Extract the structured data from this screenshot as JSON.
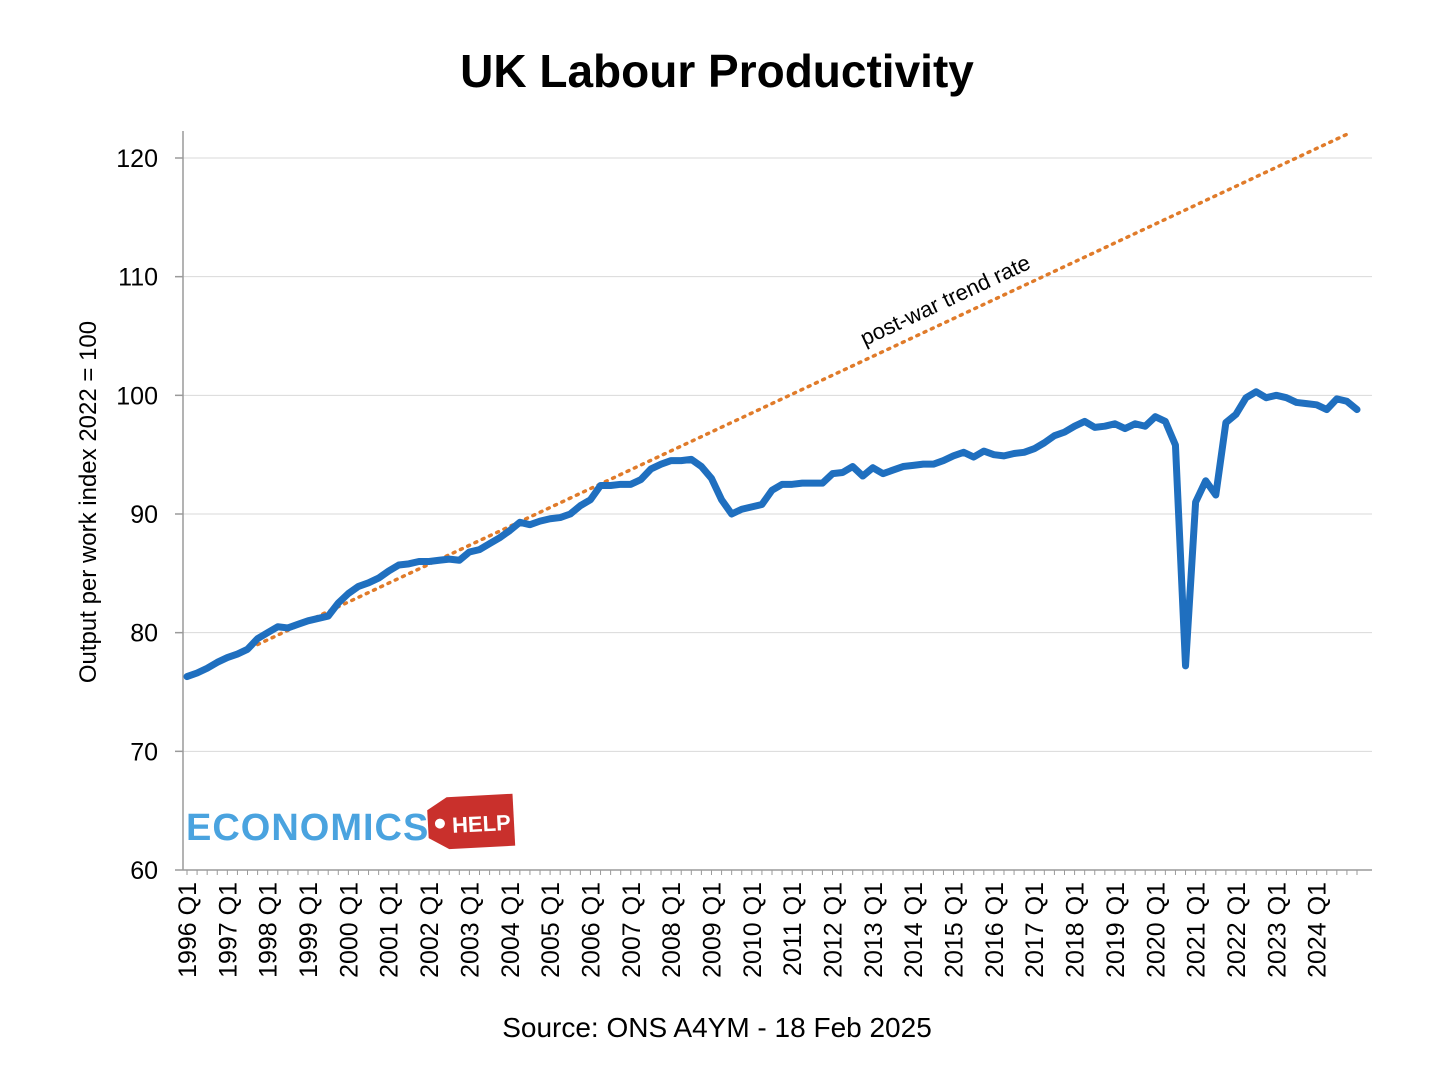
{
  "chart_data": {
    "type": "line",
    "title": "UK Labour Productivity",
    "xlabel": "",
    "ylabel": "Output per work index 2022 = 100",
    "ylim": [
      60,
      120
    ],
    "yticks": [
      60,
      70,
      80,
      90,
      100,
      110,
      120
    ],
    "grid": true,
    "x_tick_labels": [
      "1996 Q1",
      "1997 Q1",
      "1998 Q1",
      "1999 Q1",
      "2000 Q1",
      "2001 Q1",
      "2002 Q1",
      "2003 Q1",
      "2004 Q1",
      "2005 Q1",
      "2006 Q1",
      "2007 Q1",
      "2008 Q1",
      "2009 Q1",
      "2010 Q1",
      "2011 Q1",
      "2012 Q1",
      "2013 Q1",
      "2014 Q1",
      "2015 Q1",
      "2016 Q1",
      "2017 Q1",
      "2018 Q1",
      "2019 Q1",
      "2020 Q1",
      "2021 Q1",
      "2022 Q1",
      "2023 Q1",
      "2024 Q1"
    ],
    "x_start": "1996 Q1",
    "x_end": "2024 Q4",
    "series": [
      {
        "name": "",
        "color": "#1f6fbf",
        "values": [
          76.3,
          76.6,
          77.0,
          77.5,
          77.9,
          78.2,
          78.6,
          79.5,
          80.0,
          80.5,
          80.4,
          80.7,
          81.0,
          81.2,
          81.4,
          82.5,
          83.3,
          83.9,
          84.2,
          84.6,
          85.2,
          85.7,
          85.8,
          86.0,
          86.0,
          86.1,
          86.2,
          86.1,
          86.8,
          87.0,
          87.5,
          88.0,
          88.6,
          89.3,
          89.1,
          89.4,
          89.6,
          89.7,
          90.0,
          90.7,
          91.2,
          92.4,
          92.4,
          92.5,
          92.5,
          92.9,
          93.8,
          94.2,
          94.5,
          94.5,
          94.6,
          94.0,
          93.0,
          91.2,
          90.0,
          90.4,
          90.6,
          90.8,
          92.0,
          92.5,
          92.5,
          92.6,
          92.6,
          92.6,
          93.4,
          93.5,
          94.0,
          93.2,
          93.9,
          93.4,
          93.7,
          94.0,
          94.1,
          94.2,
          94.2,
          94.5,
          94.9,
          95.2,
          94.8,
          95.3,
          95.0,
          94.9,
          95.1,
          95.2,
          95.5,
          96.0,
          96.6,
          96.9,
          97.4,
          97.8,
          97.3,
          97.4,
          97.6,
          97.2,
          97.6,
          97.4,
          98.2,
          97.8,
          95.8,
          77.2,
          91.0,
          92.8,
          91.6,
          97.7,
          98.4,
          99.8,
          100.3,
          99.8,
          100.0,
          99.8,
          99.4,
          99.3,
          99.2,
          98.8,
          99.7,
          99.5,
          98.8
        ]
      },
      {
        "name": "post-war trend rate",
        "color": "#e07b2a",
        "style": "dotted",
        "values": [
          [
            1997.75,
            79.0
          ],
          [
            2024.75,
            122.0
          ]
        ]
      }
    ],
    "annotations": [
      "post-war trend rate"
    ],
    "legend": "none"
  },
  "source": "Source: ONS A4YM - 18 Feb 2025",
  "logo": {
    "text_main": "ECONOMICS",
    "text_tag": "HELP",
    "main_color": "#4aa3df",
    "tag_color": "#c9302c"
  }
}
